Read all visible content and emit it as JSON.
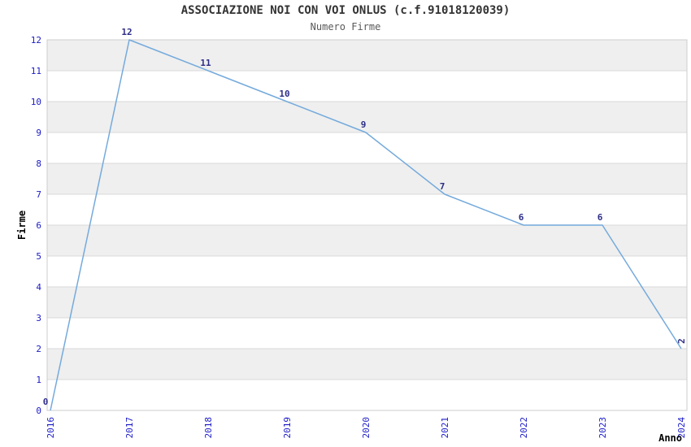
{
  "chart_data": {
    "type": "line",
    "title": "ASSOCIAZIONE NOI CON VOI ONLUS (c.f.91018120039)",
    "subtitle": "Numero Firme",
    "xlabel": "Anno",
    "ylabel": "Firme",
    "categories": [
      "2016",
      "2017",
      "2018",
      "2019",
      "2020",
      "2021",
      "2022",
      "2023",
      "2024"
    ],
    "series": [
      {
        "name": "Numero Firme",
        "values": [
          0,
          12,
          11,
          10,
          9,
          7,
          6,
          6,
          2
        ]
      }
    ],
    "point_labels": [
      "0",
      "12",
      "11",
      "10",
      "9",
      "7",
      "6",
      "6",
      "2"
    ],
    "yticks": [
      0,
      1,
      2,
      3,
      4,
      5,
      6,
      7,
      8,
      9,
      10,
      11,
      12
    ],
    "ylim": [
      0,
      12
    ],
    "legend": "none",
    "grid": "horizontal",
    "background_bands": "alternating",
    "colors": {
      "line": "#74aadc",
      "point_label": "#2d2d87",
      "tick_label": "#1a1ac8",
      "band": "#efefef",
      "gridline": "#d9d9d9",
      "plot_border": "#cccccc",
      "background": "#ffffff"
    }
  }
}
